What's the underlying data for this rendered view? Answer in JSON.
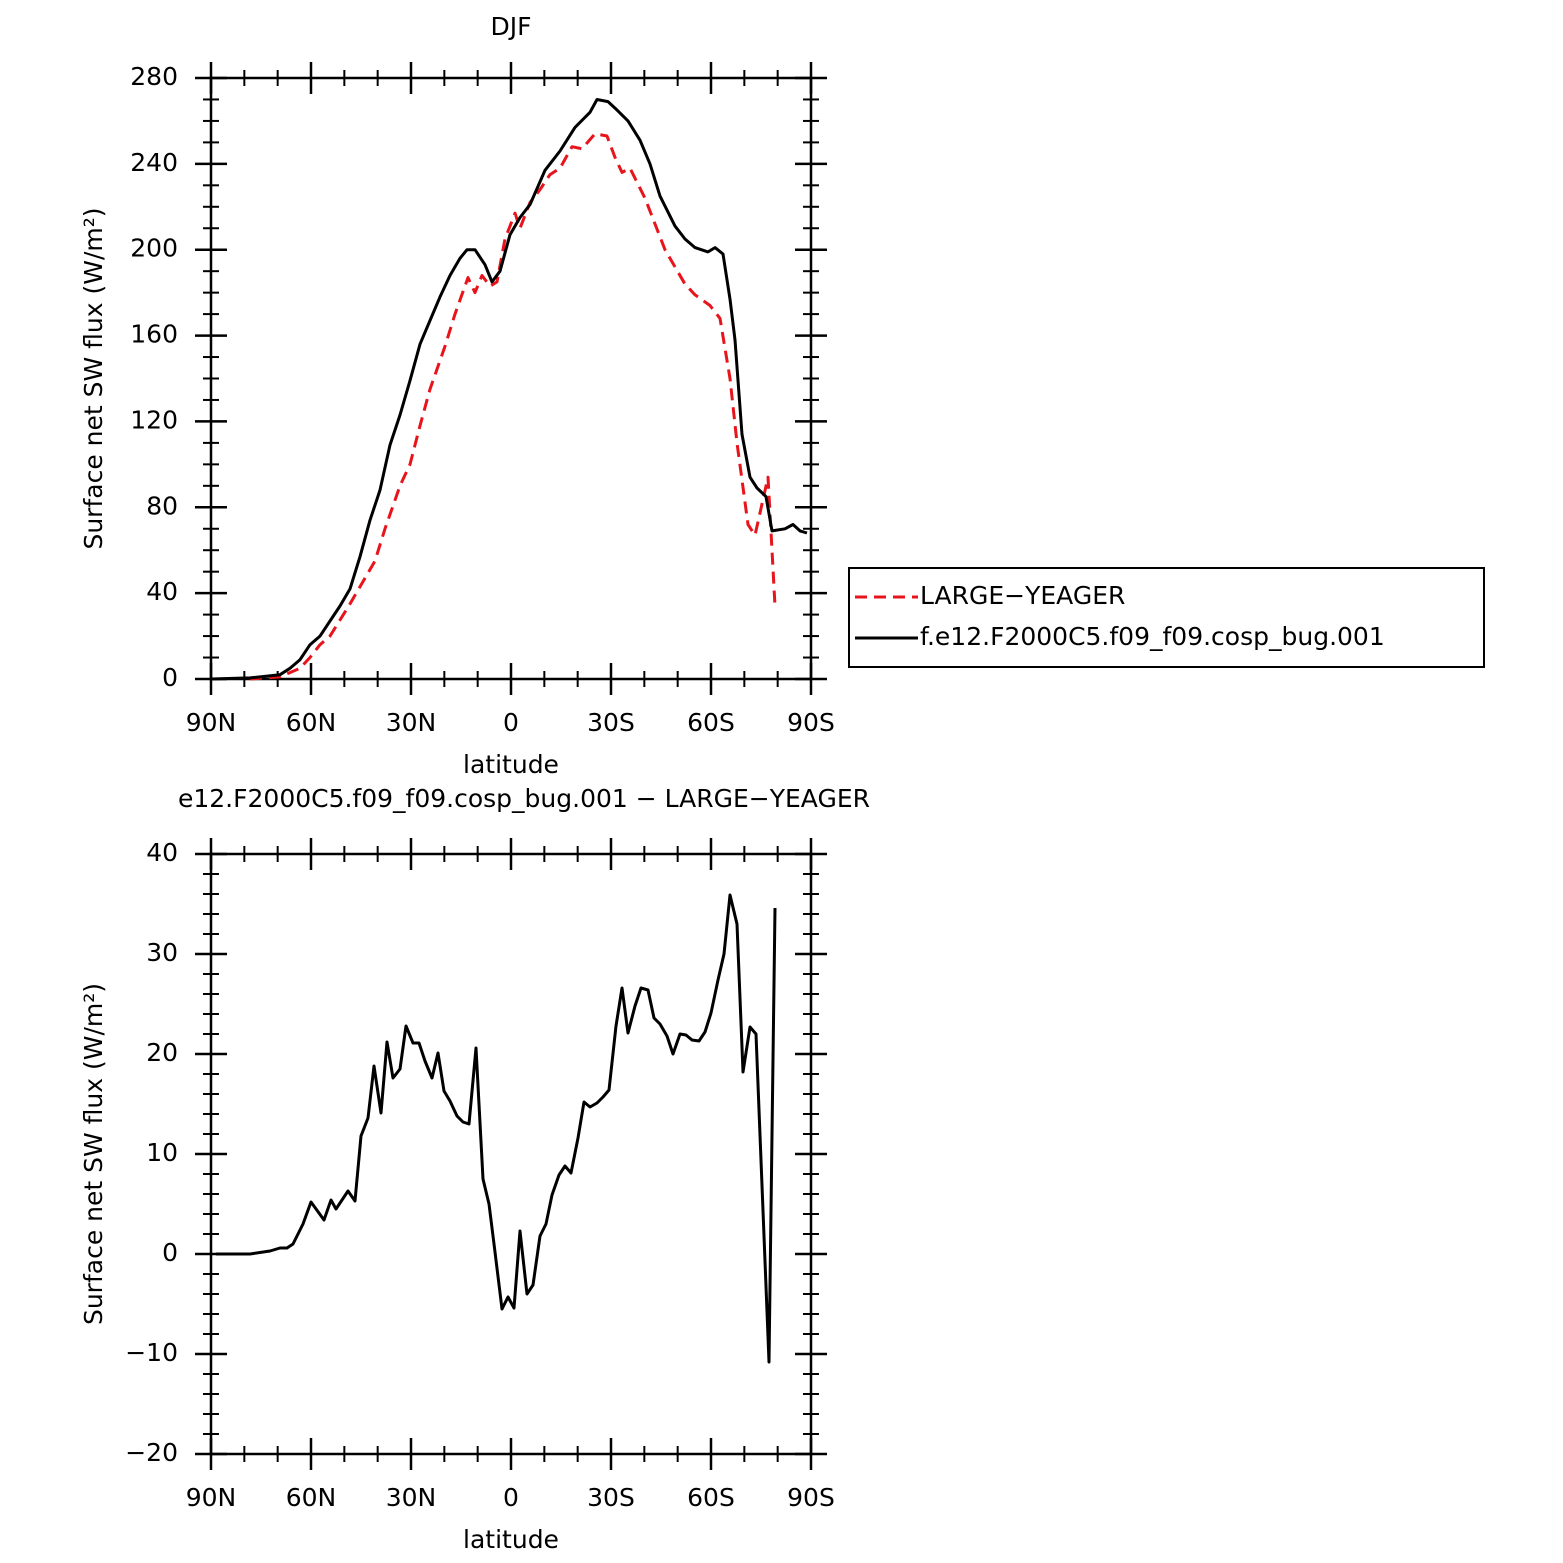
{
  "chart_data": [
    {
      "type": "line",
      "title": "DJF",
      "xlabel": "latitude",
      "ylabel": "Surface net SW flux (W/m²)",
      "xlim": [
        90,
        -90
      ],
      "xticks": [
        {
          "value": 90,
          "label": "90N"
        },
        {
          "value": 60,
          "label": "60N"
        },
        {
          "value": 30,
          "label": "30N"
        },
        0,
        {
          "value": -30,
          "label": "30S"
        },
        {
          "value": -60,
          "label": "60S"
        },
        {
          "value": -90,
          "label": "90S"
        }
      ],
      "ylim": [
        0,
        280
      ],
      "yticks": [
        0,
        40,
        80,
        120,
        160,
        200,
        240,
        280
      ],
      "legend": "right",
      "series": [
        {
          "name": "LARGE−YEAGER",
          "color": "#e8141b",
          "style": "dashed",
          "x": [
            78.3,
            69.3,
            63.3,
            60.3,
            57.3,
            54.3,
            48.3,
            45.3,
            40.8,
            37.8,
            33.3,
            30.3,
            27.3,
            24.3,
            19.8,
            16.8,
            12.9,
            10.8,
            8.7,
            6.3,
            4.2,
            1.8,
            -1.2,
            -2.7,
            -5.7,
            -8.7,
            -11.7,
            -14.7,
            -18.3,
            -21.3,
            -25.2,
            -28.8,
            -31.2,
            -33.3,
            -35.7,
            -40.2,
            -46.2,
            -52.2,
            -55.2,
            -59.7,
            -62.7,
            -65.7,
            -67.8,
            -71.1,
            -73.2,
            -77.1,
            -78.3,
            -79.2
          ],
          "values": [
            0,
            1,
            5,
            10,
            16,
            20,
            35,
            43,
            55,
            70,
            90,
            100,
            118,
            135,
            155,
            170,
            187,
            180,
            188,
            183,
            185,
            205,
            217,
            210,
            222,
            228,
            235,
            238,
            248,
            247,
            254,
            253,
            243,
            236,
            238,
            224,
            200,
            184,
            179,
            174,
            168,
            140,
            110,
            72,
            67,
            94,
            60,
            34
          ]
        },
        {
          "name": "f.e12.F2000C5.f09_f09.cosp_bug.001",
          "color": "#000000",
          "style": "solid",
          "x": [
            90,
            78.3,
            69.3,
            66.3,
            63.3,
            60.3,
            57.3,
            54.3,
            51.3,
            48.3,
            45.3,
            42.3,
            39.3,
            36.3,
            33.3,
            30.3,
            27.3,
            24.3,
            21.3,
            18.3,
            15.3,
            13.2,
            10.8,
            7.8,
            5.7,
            3.3,
            0.3,
            -2.7,
            -5.7,
            -10.2,
            -14.7,
            -19.2,
            -23.7,
            -25.8,
            -29.1,
            -31.2,
            -35.1,
            -38.7,
            -41.7,
            -44.7,
            -49.2,
            -52.2,
            -55.2,
            -59.1,
            -61.2,
            -63.6,
            -65.7,
            -67.2,
            -69.3,
            -71.7,
            -73.8,
            -76.5,
            -78.3,
            -82.2,
            -84.6,
            -86.7,
            -88.8
          ],
          "values": [
            0,
            0.5,
            2,
            5,
            9,
            16,
            20,
            27,
            34,
            42,
            57,
            74,
            88,
            109,
            123,
            139,
            156,
            167,
            178,
            188,
            196,
            200,
            200,
            193,
            185,
            190,
            207,
            215,
            221,
            237,
            246,
            257,
            264,
            270,
            269,
            266,
            260,
            251,
            240,
            225,
            211,
            205,
            201,
            199,
            201,
            198,
            177,
            158,
            114,
            94,
            89,
            85,
            69,
            70,
            72,
            69,
            68
          ]
        }
      ]
    },
    {
      "type": "line",
      "title": "e12.F2000C5.f09_f09.cosp_bug.001 − LARGE−YEAGER",
      "xlabel": "latitude",
      "ylabel": "Surface net SW flux (W/m²)",
      "xlim": [
        90,
        -90
      ],
      "xticks": [
        {
          "value": 90,
          "label": "90N"
        },
        {
          "value": 60,
          "label": "60N"
        },
        {
          "value": 30,
          "label": "30N"
        },
        0,
        {
          "value": -30,
          "label": "30S"
        },
        {
          "value": -60,
          "label": "60S"
        },
        {
          "value": -90,
          "label": "90S"
        }
      ],
      "ylim": [
        -20,
        40
      ],
      "yticks": [
        {
          "value": -20,
          "label": "−20"
        },
        {
          "value": -10,
          "label": "−10"
        },
        0,
        10,
        20,
        30,
        40
      ],
      "series": [
        {
          "color": "#000000",
          "style": "solid",
          "x": [
            88.5,
            78.3,
            72.3,
            69.3,
            67.2,
            65.4,
            62.4,
            60,
            56.1,
            54,
            52.5,
            48.9,
            46.8,
            45,
            42.9,
            41.1,
            39,
            37.2,
            35.4,
            33.3,
            31.5,
            29.4,
            27.6,
            25.8,
            23.7,
            21.9,
            20.1,
            18.3,
            16.2,
            14.4,
            12.6,
            10.5,
            8.4,
            6.6,
            4.8,
            2.7,
            0.9,
            -0.9,
            -2.7,
            -4.8,
            -6.6,
            -8.7,
            -10.5,
            -12.3,
            -14.4,
            -16.2,
            -18,
            -20.1,
            -21.9,
            -23.7,
            -25.8,
            -27.6,
            -29.4,
            -31.5,
            -33.3,
            -35.1,
            -37.2,
            -39,
            -41.1,
            -42.9,
            -44.7,
            -46.8,
            -48.6,
            -50.7,
            -52.5,
            -54.3,
            -56.4,
            -58.2,
            -60,
            -62.1,
            -63.9,
            -65.7,
            -67.8,
            -69.6,
            -71.7,
            -73.5,
            -77.4,
            -79.2
          ],
          "values": [
            0,
            0,
            0.3,
            0.6,
            0.6,
            1,
            3,
            5.2,
            3.4,
            5.4,
            4.5,
            6.3,
            5.3,
            11.8,
            13.6,
            18.8,
            14.1,
            21.2,
            17.6,
            18.5,
            22.8,
            21.1,
            21.1,
            19.3,
            17.6,
            20.1,
            16.3,
            15.3,
            13.8,
            13.2,
            13,
            20.6,
            7.5,
            5,
            0.2,
            -5.5,
            -4.3,
            -5.4,
            2.3,
            -4,
            -3.1,
            1.8,
            3,
            5.9,
            7.9,
            8.8,
            8.1,
            11.6,
            15.2,
            14.7,
            15.1,
            15.7,
            16.4,
            22.8,
            26.6,
            22.1,
            24.8,
            26.6,
            26.4,
            23.6,
            23,
            21.8,
            20,
            22,
            21.9,
            21.4,
            21.3,
            22.2,
            24.1,
            27.4,
            30,
            35.9,
            33,
            18.2,
            22.7,
            22,
            -10.8,
            34.6
          ]
        }
      ]
    }
  ]
}
